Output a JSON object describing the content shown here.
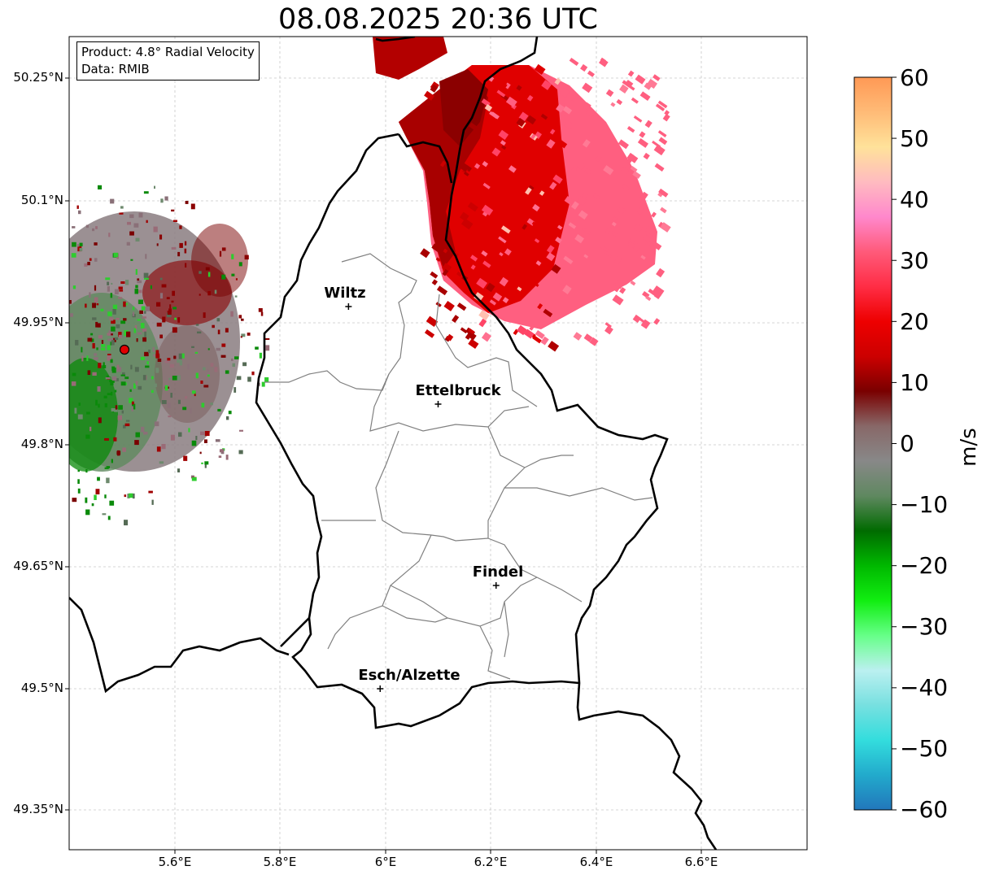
{
  "title": "08.08.2025 20:36 UTC",
  "info": {
    "product": "Product: 4.8° Radial Velocity",
    "data": "Data: RMIB"
  },
  "axes": {
    "lat_ticks": [
      "50.25°N",
      "50.1°N",
      "49.95°N",
      "49.8°N",
      "49.65°N",
      "49.5°N",
      "49.35°N"
    ],
    "lon_ticks": [
      "5.6°E",
      "5.8°E",
      "6°E",
      "6.2°E",
      "6.4°E",
      "6.6°E"
    ],
    "lat_range": [
      49.3,
      50.3
    ],
    "lon_range": [
      5.4,
      6.8
    ]
  },
  "cities": [
    {
      "name": "Wiltz",
      "lon": 5.93,
      "lat": 49.968
    },
    {
      "name": "Ettelbruck",
      "lon": 6.1,
      "lat": 49.848
    },
    {
      "name": "Findel",
      "lon": 6.21,
      "lat": 49.625
    },
    {
      "name": "Esch/Alzette",
      "lon": 5.99,
      "lat": 49.498
    }
  ],
  "radar_site": {
    "name": "radar-site",
    "lon": 5.505,
    "lat": 49.915,
    "color": "#e00000"
  },
  "colorbar": {
    "label": "m/s",
    "ticks": [
      "60",
      "50",
      "40",
      "30",
      "20",
      "10",
      "0",
      "−10",
      "−20",
      "−30",
      "−40",
      "−50",
      "−60"
    ],
    "stops": [
      "#ff9955",
      "#ffbb77",
      "#ffe29a",
      "#ffbbc0",
      "#ff88cc",
      "#ff5a7a",
      "#ff2d45",
      "#ee0000",
      "#cc0000",
      "#7a0000",
      "#886868",
      "#888888",
      "#5f8860",
      "#006b00",
      "#00b800",
      "#11ee11",
      "#66ff88",
      "#bbf0f0",
      "#77e0e0",
      "#33dddd",
      "#22aacc",
      "#2277bb"
    ]
  },
  "colors": {
    "inbound_green": "#2e8b2e",
    "outbound_red": "#b40000",
    "outbound_pink": "#ff5f7f"
  }
}
